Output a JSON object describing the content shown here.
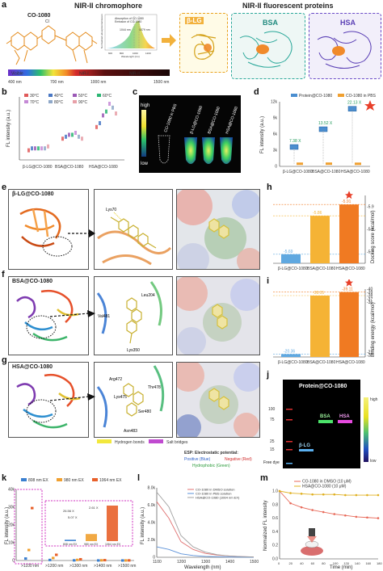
{
  "panels": {
    "a": {
      "label": "a",
      "chromophore_title": "NIR-II chromophore",
      "proteins_title": "NIR-II fluorescent proteins",
      "dye_name": "CO-1080",
      "protein_names": [
        "β-LG",
        "BSA",
        "HSA"
      ],
      "spectrum_bar": {
        "regions": [
          "Visible",
          "NIR-I",
          "NIR-II"
        ],
        "ticks": [
          "400 nm",
          "700 nm",
          "1000 nm",
          "1500 nm"
        ]
      },
      "inset": {
        "legend": [
          "Absorption of CO-1080",
          "Emission of CO-1080"
        ],
        "peaks": [
          "1044 nm",
          "1079 nm"
        ],
        "ylabel": "Normalized absorption/emission",
        "xlabel": "Wavelength (nm)",
        "xticks": [
          "600",
          "800",
          "1000",
          "1200"
        ]
      }
    },
    "b": {
      "label": "b",
      "legend": [
        "30°C",
        "40°C",
        "50°C",
        "60°C",
        "70°C",
        "80°C",
        "90°C"
      ],
      "legend_colors": [
        "#e05a5a",
        "#4a78c4",
        "#9b59b6",
        "#2bb673",
        "#c58ad6",
        "#8fa8c8",
        "#e8a0a8"
      ],
      "ylabel": "FL intensity (a.u.)",
      "xlabels": [
        "β-LG@CO-1080",
        "BSA@CO-1080",
        "HSA@CO-1080"
      ]
    },
    "c": {
      "label": "c",
      "scale_high": "high",
      "scale_low": "low",
      "tubes": [
        "CO-1080 in PBS",
        "β-LG@CO-1080",
        "BSA@CO-1080",
        "HSA@CO-1080"
      ]
    },
    "d": {
      "label": "d",
      "legend": [
        "Protein@CO-1080",
        "CO-1080 in PBS"
      ],
      "ylabel": "FL intensity (a.u.)",
      "yticks": [
        "0",
        "3k",
        "6k",
        "9k",
        "12k"
      ],
      "xlabels": [
        "β-LG@CO-1080",
        "BSA@CO-1080",
        "HSA@CO-1080"
      ],
      "fold": [
        "7.38 X",
        "13.52 X",
        "22.13 X"
      ]
    },
    "e": {
      "label": "e",
      "title": "β-LG@CO-1080",
      "residue": "Lys70"
    },
    "f": {
      "label": "f",
      "title": "BSA@CO-1080",
      "residues": [
        "Leu204",
        "Val481",
        "Lys350"
      ]
    },
    "g": {
      "label": "g",
      "title": "HSA@CO-1080",
      "residues": [
        "Arg472",
        "Thr478",
        "Lys475",
        "Ser480",
        "Asn483"
      ]
    },
    "legend_bonds": {
      "hbond": "Hydrogen bonds",
      "salt": "Salt bridges",
      "esp_title": "ESP: Electrostatic potential:",
      "pos": "Positive (Blue)",
      "neg": "Negative (Red)",
      "hyd": "Hydrophobic (Green)"
    },
    "h": {
      "label": "h",
      "ylabel": "Docking score (kcal/mol)",
      "yticks": [
        "-5.7",
        "-5.8",
        "-5.9"
      ],
      "xlabels": [
        "β-LG@CO-1080",
        "BSA@CO-1080",
        "HSA@CO-1080"
      ],
      "value_labels": [
        "-5.69",
        "-5.86",
        "-5.91"
      ]
    },
    "i": {
      "label": "i",
      "ylabel": "Binding energy (kcal/mol)",
      "yticks": [
        "-40",
        "-39",
        "-38",
        "-37",
        "-36",
        "-21",
        "-20"
      ],
      "xlabels": [
        "β-LG@CO-1080",
        "BSA@CO-1080",
        "HSA@CO-1080"
      ],
      "value_labels": [
        "-20.36",
        "-38.05",
        "-39.11"
      ]
    },
    "j": {
      "label": "j",
      "title": "Protein@CO-1080",
      "markers": [
        "100",
        "75",
        "25",
        "15"
      ],
      "bands": [
        "BSA",
        "HSA",
        "β-LG"
      ],
      "free": "Free dye",
      "high": "high",
      "low": "low"
    },
    "k": {
      "label": "k",
      "legend": [
        "808 nm EX",
        "980 nm EX",
        "1064 nm EX"
      ],
      "ylabel": "FL intensity (a.u.)",
      "yticks": [
        "0",
        "10k",
        "20k",
        "30k",
        "40k"
      ],
      "xlabels": [
        ">1100 nm",
        ">1200 nm",
        ">1300 nm",
        ">1400 nm",
        ">1500 nm"
      ],
      "inset_labels": [
        "808 nm EX",
        "980 nm EX",
        "1064 nm EX"
      ],
      "inset_vals": [
        "26.56 X",
        "5.07 X",
        "2.61 X"
      ]
    },
    "l": {
      "label": "l",
      "legend": [
        "CO-1080 in DMSO solution",
        "CO-1080 in PBS solution",
        "HSA@CO-1080   (1064 nm EX)"
      ],
      "ylabel": "FL intensity (a.u.)",
      "yticks": [
        "0",
        "2.0k",
        "4.0k",
        "6.0k",
        "8.0k"
      ],
      "xlabel": "Wavelength (nm)",
      "xticks": [
        "1100",
        "1200",
        "1300",
        "1400",
        "1500"
      ]
    },
    "m": {
      "label": "m",
      "legend": [
        "CO-1080 in DMSO (10 μM)",
        "HSA@CO-1080 (10 μM)"
      ],
      "ylabel": "Normalized FL intensity",
      "yticks": [
        "0.0",
        "0.2",
        "0.4",
        "0.6",
        "0.8",
        "1.0"
      ],
      "xlabel": "Time (min)",
      "xticks": [
        "0",
        "20",
        "40",
        "60",
        "80",
        "100",
        "120",
        "140",
        "160",
        "180"
      ]
    }
  },
  "chart_data": [
    {
      "type": "bar",
      "title": "Docking score",
      "ylabel": "Docking score (kcal/mol)",
      "categories": [
        "β-LG@CO-1080",
        "BSA@CO-1080",
        "HSA@CO-1080"
      ],
      "values": [
        -5.69,
        -5.86,
        -5.91
      ],
      "colors": [
        "#5fa8e0",
        "#f5b335",
        "#f07a22"
      ]
    },
    {
      "type": "bar",
      "title": "Binding energy",
      "ylabel": "Binding energy (kcal/mol)",
      "categories": [
        "β-LG@CO-1080",
        "BSA@CO-1080",
        "HSA@CO-1080"
      ],
      "values": [
        -20.36,
        -38.05,
        -39.11
      ],
      "colors": [
        "#5fa8e0",
        "#f5b335",
        "#f07a22"
      ]
    },
    {
      "type": "bar",
      "title": "FL intensity d",
      "categories": [
        "β-LG@CO-1080",
        "BSA@CO-1080",
        "HSA@CO-1080"
      ],
      "series": [
        {
          "name": "Protein@CO-1080",
          "values": [
            3600,
            6900,
            10700
          ]
        },
        {
          "name": "CO-1080 in PBS",
          "values": [
            490,
            500,
            480
          ]
        }
      ],
      "ylim": [
        0,
        12000
      ]
    },
    {
      "type": "bar",
      "title": "FL intensity k",
      "categories": [
        ">1100 nm",
        ">1200 nm",
        ">1300 nm",
        ">1400 nm",
        ">1500 nm"
      ],
      "series": [
        {
          "name": "808 nm EX",
          "values": [
            1100,
            300,
            80,
            30,
            10
          ]
        },
        {
          "name": "980 nm EX",
          "values": [
            5900,
            1400,
            350,
            100,
            30
          ]
        },
        {
          "name": "1064 nm EX",
          "values": [
            29500,
            3200,
            700,
            200,
            60
          ]
        }
      ],
      "ylim": [
        0,
        40000
      ]
    },
    {
      "type": "line",
      "title": "FL spectrum l",
      "x": [
        1100,
        1150,
        1200,
        1250,
        1300,
        1350,
        1400,
        1450,
        1500
      ],
      "series": [
        {
          "name": "CO-1080 in DMSO solution",
          "values": [
            6400,
            4500,
            1800,
            900,
            450,
            250,
            150,
            80,
            40
          ]
        },
        {
          "name": "CO-1080 in PBS solution",
          "values": [
            1200,
            900,
            400,
            200,
            100,
            60,
            30,
            20,
            10
          ]
        },
        {
          "name": "HSA@CO-1080   (1064 nm EX)",
          "values": [
            7500,
            5800,
            2500,
            1200,
            600,
            300,
            150,
            80,
            40
          ]
        }
      ],
      "ylim": [
        0,
        8000
      ]
    },
    {
      "type": "line",
      "title": "photostability m",
      "x": [
        0,
        20,
        40,
        60,
        80,
        100,
        120,
        140,
        160,
        180
      ],
      "series": [
        {
          "name": "CO-1080 in DMSO (10 μM)",
          "values": [
            1.0,
            0.82,
            0.76,
            0.72,
            0.69,
            0.66,
            0.64,
            0.62,
            0.61,
            0.6
          ]
        },
        {
          "name": "HSA@CO-1080 (10 μM)",
          "values": [
            1.0,
            0.97,
            0.96,
            0.95,
            0.95,
            0.95,
            0.94,
            0.94,
            0.94,
            0.94
          ]
        }
      ],
      "ylim": [
        0,
        1.0
      ]
    }
  ]
}
